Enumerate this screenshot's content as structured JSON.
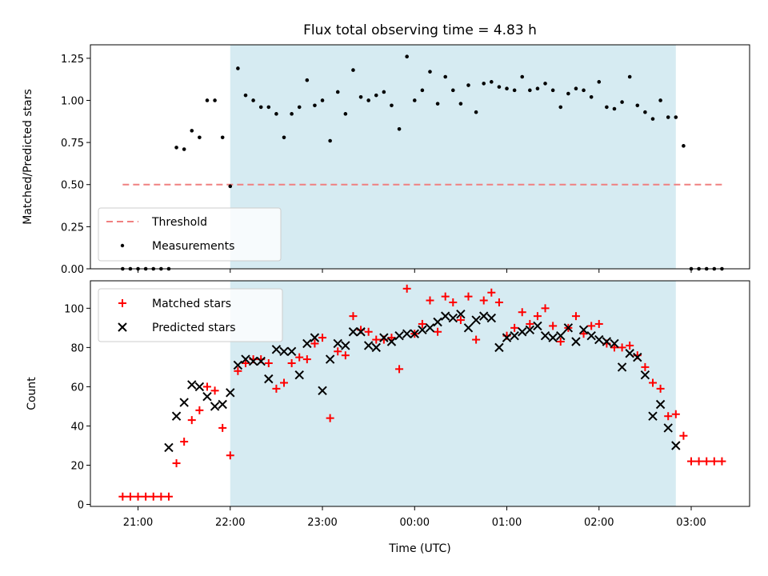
{
  "chart_data": [
    {
      "type": "scatter",
      "title": "Flux total observing time = 4.83 h",
      "ylabel": "Matched/Predicted stars",
      "xlabel": "",
      "ylim": [
        0,
        1.33
      ],
      "y_ticks": [
        0.0,
        0.25,
        0.5,
        0.75,
        1.0,
        1.25
      ],
      "y_tick_labels": [
        "0.00",
        "0.25",
        "0.50",
        "0.75",
        "1.00",
        "1.25"
      ],
      "observing_window": [
        "22:00",
        "02:50"
      ],
      "legend": {
        "position": "lower-left",
        "entries": [
          "Threshold",
          "Measurements"
        ]
      },
      "threshold": {
        "name": "Threshold",
        "value": 0.5,
        "x_range": [
          "20:50",
          "03:20"
        ],
        "color": "#f08080"
      },
      "series": [
        {
          "name": "Measurements",
          "color": "#000000",
          "x": [
            "20:50",
            "20:55",
            "21:00",
            "21:05",
            "21:10",
            "21:15",
            "21:20",
            "21:25",
            "21:30",
            "21:35",
            "21:40",
            "21:45",
            "21:50",
            "21:55",
            "22:00",
            "22:05",
            "22:10",
            "22:15",
            "22:20",
            "22:25",
            "22:30",
            "22:35",
            "22:40",
            "22:45",
            "22:50",
            "22:55",
            "23:00",
            "23:05",
            "23:10",
            "23:15",
            "23:20",
            "23:25",
            "23:30",
            "23:35",
            "23:40",
            "23:45",
            "23:50",
            "23:55",
            "00:00",
            "00:05",
            "00:10",
            "00:15",
            "00:20",
            "00:25",
            "00:30",
            "00:35",
            "00:40",
            "00:45",
            "00:50",
            "00:55",
            "01:00",
            "01:05",
            "01:10",
            "01:15",
            "01:20",
            "01:25",
            "01:30",
            "01:35",
            "01:40",
            "01:45",
            "01:50",
            "01:55",
            "02:00",
            "02:05",
            "02:10",
            "02:15",
            "02:20",
            "02:25",
            "02:30",
            "02:35",
            "02:40",
            "02:45",
            "02:50",
            "02:55",
            "03:00",
            "03:05",
            "03:10",
            "03:15",
            "03:20"
          ],
          "y": [
            0.0,
            0.0,
            0.0,
            0.0,
            0.0,
            0.0,
            0.0,
            0.72,
            0.71,
            0.82,
            0.78,
            1.0,
            1.0,
            0.78,
            0.49,
            1.19,
            1.03,
            1.0,
            0.96,
            0.96,
            0.92,
            0.78,
            0.92,
            0.96,
            1.12,
            0.97,
            1.0,
            0.76,
            1.05,
            0.92,
            1.18,
            1.02,
            1.0,
            1.03,
            1.05,
            0.97,
            0.83,
            1.26,
            1.0,
            1.06,
            1.17,
            0.98,
            1.14,
            1.06,
            0.98,
            1.09,
            0.93,
            1.1,
            1.11,
            1.08,
            1.07,
            1.06,
            1.14,
            1.06,
            1.07,
            1.1,
            1.06,
            0.96,
            1.04,
            1.07,
            1.06,
            1.02,
            1.11,
            0.96,
            0.95,
            0.99,
            1.14,
            0.97,
            0.93,
            0.89,
            1.0,
            0.9,
            0.9,
            0.73,
            0.0,
            0.0,
            0.0,
            0.0,
            0.0
          ]
        }
      ]
    },
    {
      "type": "scatter",
      "title": "",
      "ylabel": "Count",
      "xlabel": "Time (UTC)",
      "ylim": [
        -1,
        114
      ],
      "y_ticks": [
        0,
        20,
        40,
        60,
        80,
        100
      ],
      "y_tick_labels": [
        "0",
        "20",
        "40",
        "60",
        "80",
        "100"
      ],
      "x_ticks": [
        "21:00",
        "22:00",
        "23:00",
        "00:00",
        "01:00",
        "02:00",
        "03:00"
      ],
      "x_tick_labels": [
        "21:00",
        "22:00",
        "23:00",
        "00:00",
        "01:00",
        "02:00",
        "03:00"
      ],
      "x_range": [
        "20:29",
        "03:38"
      ],
      "observing_window": [
        "22:00",
        "02:50"
      ],
      "legend": {
        "position": "top-left",
        "entries": [
          "Matched stars",
          "Predicted stars"
        ]
      },
      "series": [
        {
          "name": "Matched stars",
          "marker": "plus",
          "color": "#ff0000",
          "x": [
            "20:50",
            "20:55",
            "21:00",
            "21:05",
            "21:10",
            "21:15",
            "21:20",
            "21:25",
            "21:30",
            "21:35",
            "21:40",
            "21:45",
            "21:50",
            "21:55",
            "22:00",
            "22:05",
            "22:10",
            "22:15",
            "22:20",
            "22:25",
            "22:30",
            "22:35",
            "22:40",
            "22:45",
            "22:50",
            "22:55",
            "23:00",
            "23:05",
            "23:10",
            "23:15",
            "23:20",
            "23:25",
            "23:30",
            "23:35",
            "23:40",
            "23:45",
            "23:50",
            "23:55",
            "00:00",
            "00:05",
            "00:10",
            "00:15",
            "00:20",
            "00:25",
            "00:30",
            "00:35",
            "00:40",
            "00:45",
            "00:50",
            "00:55",
            "01:00",
            "01:05",
            "01:10",
            "01:15",
            "01:20",
            "01:25",
            "01:30",
            "01:35",
            "01:40",
            "01:45",
            "01:50",
            "01:55",
            "02:00",
            "02:05",
            "02:10",
            "02:15",
            "02:20",
            "02:25",
            "02:30",
            "02:35",
            "02:40",
            "02:45",
            "02:50",
            "02:55",
            "03:00",
            "03:05",
            "03:10",
            "03:15",
            "03:20"
          ],
          "y": [
            4,
            4,
            4,
            4,
            4,
            4,
            4,
            21,
            32,
            43,
            48,
            60,
            58,
            39,
            25,
            68,
            72,
            74,
            74,
            72,
            59,
            62,
            72,
            75,
            74,
            82,
            85,
            44,
            78,
            76,
            96,
            89,
            88,
            84,
            84,
            85,
            69,
            110,
            87,
            92,
            104,
            88,
            106,
            103,
            94,
            106,
            84,
            104,
            108,
            103,
            86,
            90,
            98,
            92,
            96,
            100,
            91,
            83,
            90,
            96,
            87,
            91,
            92,
            82,
            80,
            80,
            81,
            76,
            70,
            62,
            59,
            45,
            46,
            35,
            22,
            22,
            22,
            22,
            22
          ]
        },
        {
          "name": "Predicted stars",
          "marker": "x",
          "color": "#000000",
          "x": [
            "21:20",
            "21:25",
            "21:30",
            "21:35",
            "21:40",
            "21:45",
            "21:50",
            "21:55",
            "22:00",
            "22:05",
            "22:10",
            "22:15",
            "22:20",
            "22:25",
            "22:30",
            "22:35",
            "22:40",
            "22:45",
            "22:50",
            "22:55",
            "23:00",
            "23:05",
            "23:10",
            "23:15",
            "23:20",
            "23:25",
            "23:30",
            "23:35",
            "23:40",
            "23:45",
            "23:50",
            "23:55",
            "00:00",
            "00:05",
            "00:10",
            "00:15",
            "00:20",
            "00:25",
            "00:30",
            "00:35",
            "00:40",
            "00:45",
            "00:50",
            "00:55",
            "01:00",
            "01:05",
            "01:10",
            "01:15",
            "01:20",
            "01:25",
            "01:30",
            "01:35",
            "01:40",
            "01:45",
            "01:50",
            "01:55",
            "02:00",
            "02:05",
            "02:10",
            "02:15",
            "02:20",
            "02:25",
            "02:30",
            "02:35",
            "02:40",
            "02:45",
            "02:50"
          ],
          "y": [
            29,
            45,
            52,
            61,
            60,
            55,
            50,
            51,
            57,
            71,
            74,
            73,
            73,
            64,
            79,
            78,
            78,
            66,
            82,
            85,
            58,
            74,
            82,
            81,
            88,
            88,
            81,
            80,
            85,
            83,
            86,
            87,
            87,
            89,
            90,
            93,
            96,
            95,
            97,
            90,
            94,
            96,
            95,
            80,
            85,
            86,
            88,
            89,
            91,
            86,
            85,
            86,
            90,
            83,
            89,
            86,
            84,
            83,
            82,
            70,
            77,
            75,
            66,
            45,
            51,
            39,
            30
          ]
        }
      ]
    }
  ]
}
